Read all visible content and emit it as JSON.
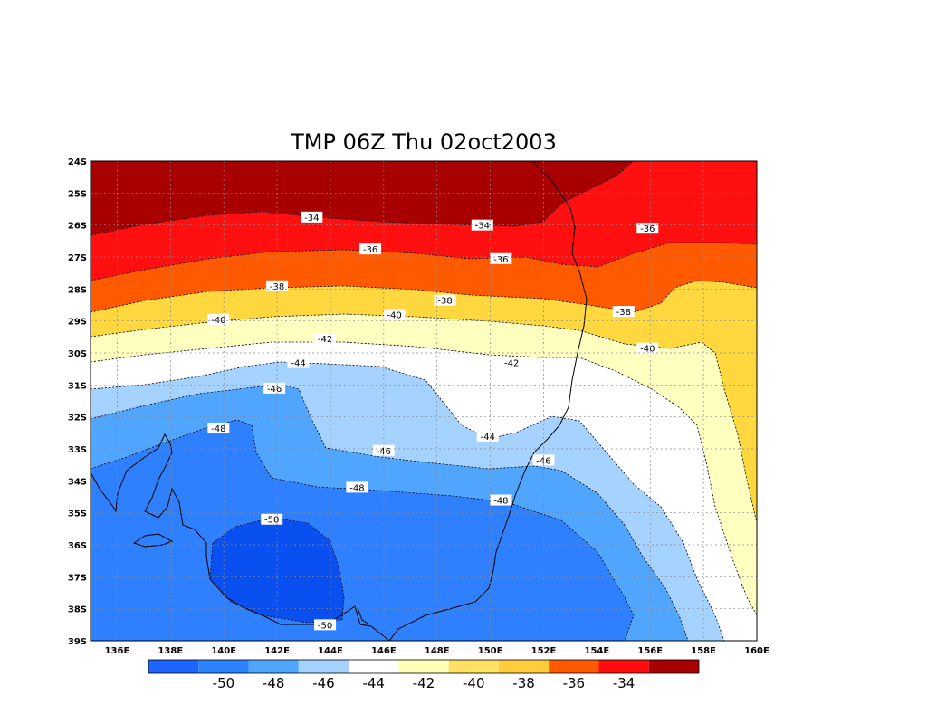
{
  "title": "TMP 06Z Thu 02oct2003",
  "chart_data": {
    "type": "heatmap",
    "variable": "TMP",
    "x_ticks": [
      "136E",
      "138E",
      "140E",
      "142E",
      "144E",
      "146E",
      "148E",
      "150E",
      "152E",
      "154E",
      "156E",
      "158E",
      "160E"
    ],
    "y_ticks": [
      "24S",
      "25S",
      "26S",
      "27S",
      "28S",
      "29S",
      "30S",
      "31S",
      "32S",
      "33S",
      "34S",
      "35S",
      "36S",
      "37S",
      "38S",
      "39S"
    ],
    "xlim": [
      135,
      160
    ],
    "ylim": [
      -39,
      -24
    ],
    "grid": true,
    "contour_labels": [
      {
        "text": "-34",
        "lon": 143.3,
        "lat": -25.75
      },
      {
        "text": "-34",
        "lon": 149.7,
        "lat": -26.0
      },
      {
        "text": "-36",
        "lon": 145.5,
        "lat": -26.75
      },
      {
        "text": "-36",
        "lon": 150.4,
        "lat": -27.05
      },
      {
        "text": "-36",
        "lon": 155.9,
        "lat": -26.1
      },
      {
        "text": "-38",
        "lon": 142.0,
        "lat": -27.9
      },
      {
        "text": "-38",
        "lon": 148.3,
        "lat": -28.35
      },
      {
        "text": "-38",
        "lon": 155.0,
        "lat": -28.7
      },
      {
        "text": "-40",
        "lon": 139.8,
        "lat": -28.95
      },
      {
        "text": "-40",
        "lon": 146.4,
        "lat": -28.8
      },
      {
        "text": "-40",
        "lon": 155.9,
        "lat": -29.85
      },
      {
        "text": "-42",
        "lon": 143.8,
        "lat": -29.55
      },
      {
        "text": "-42",
        "lon": 150.8,
        "lat": -30.3
      },
      {
        "text": "-44",
        "lon": 142.8,
        "lat": -30.3
      },
      {
        "text": "-44",
        "lon": 149.9,
        "lat": -32.6
      },
      {
        "text": "-46",
        "lon": 141.9,
        "lat": -31.1
      },
      {
        "text": "-46",
        "lon": 146.0,
        "lat": -33.05
      },
      {
        "text": "-46",
        "lon": 152.0,
        "lat": -33.35
      },
      {
        "text": "-48",
        "lon": 139.8,
        "lat": -32.35
      },
      {
        "text": "-48",
        "lon": 145.0,
        "lat": -34.2
      },
      {
        "text": "-48",
        "lon": 150.4,
        "lat": -34.6
      },
      {
        "text": "-50",
        "lon": 141.8,
        "lat": -35.2
      },
      {
        "text": "-50",
        "lon": 143.8,
        "lat": -38.5
      }
    ],
    "colorbar": {
      "labels": [
        "-50",
        "-48",
        "-46",
        "-44",
        "-42",
        "-40",
        "-38",
        "-36",
        "-34"
      ],
      "colors": [
        "#1e64ff",
        "#2c82ff",
        "#50a5ff",
        "#a6d2ff",
        "#ffffff",
        "#ffffb8",
        "#ffe166",
        "#ffcd3c",
        "#ff5a00",
        "#ff0d0d",
        "#a80000"
      ]
    }
  },
  "colors": {
    "lt_neg50": "#0a50f0",
    "neg50_48": "#2f80ff",
    "neg48_46": "#50a5ff",
    "neg46_44": "#a6d2ff",
    "neg44_42": "#ffffff",
    "neg42_40": "#ffffc0",
    "neg40_38": "#ffd840",
    "neg38_36": "#ff5a00",
    "neg36_34": "#ff0f0f",
    "gt_neg34": "#a80000",
    "coastline": "#000000"
  }
}
